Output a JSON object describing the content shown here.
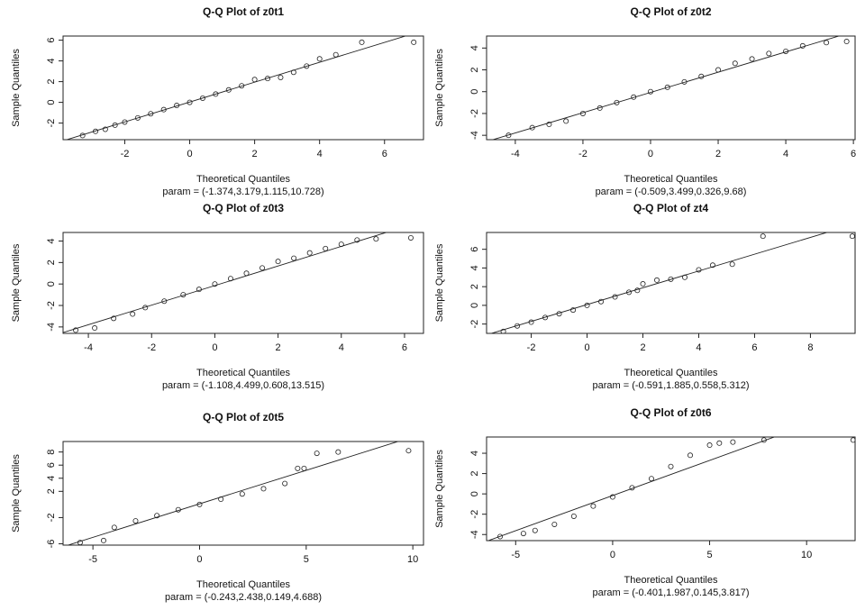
{
  "chart_data": [
    {
      "type": "scatter",
      "title": "Q-Q Plot of  z0t1",
      "xlabel": "Theoretical Quantiles",
      "ylabel": "Sample Quantiles",
      "subtitle": "param = (-1.374,3.179,1.115,10.728)",
      "x": [
        -3.3,
        -2.9,
        -2.6,
        -2.3,
        -2.0,
        -1.6,
        -1.2,
        -0.8,
        -0.4,
        0,
        0.4,
        0.8,
        1.2,
        1.6,
        2.0,
        2.4,
        2.8,
        3.2,
        3.6,
        4.0,
        4.5,
        5.3,
        6.9
      ],
      "values": [
        -3.2,
        -2.8,
        -2.6,
        -2.2,
        -1.9,
        -1.5,
        -1.1,
        -0.7,
        -0.3,
        0,
        0.4,
        0.8,
        1.2,
        1.6,
        2.2,
        2.3,
        2.4,
        2.9,
        3.5,
        4.2,
        4.6,
        5.8,
        5.8
      ],
      "xlim": [
        -3.9,
        7.2
      ],
      "xticks": [
        -2,
        0,
        2,
        4,
        6
      ],
      "ylim": [
        -3.6,
        6.4
      ],
      "yticks": [
        -2,
        0,
        2,
        4,
        6
      ]
    },
    {
      "type": "scatter",
      "title": "Q-Q Plot of  z0t2",
      "xlabel": "Theoretical Quantiles",
      "ylabel": "Sample Quantiles",
      "subtitle": "param = (-0.509,3.499,0.326,9.68)",
      "x": [
        -4.2,
        -3.5,
        -3,
        -2.5,
        -2,
        -1.5,
        -1,
        -0.5,
        0,
        0.5,
        1,
        1.5,
        2,
        2.5,
        3,
        3.5,
        4,
        4.5,
        5.2,
        5.8
      ],
      "values": [
        -4.0,
        -3.3,
        -3.0,
        -2.7,
        -2.0,
        -1.5,
        -1.0,
        -0.5,
        0,
        0.4,
        0.9,
        1.4,
        2.0,
        2.6,
        3.0,
        3.5,
        3.7,
        4.2,
        4.5,
        4.6
      ],
      "xlim": [
        -4.85,
        6.05
      ],
      "xticks": [
        -4,
        -2,
        0,
        2,
        4,
        6
      ],
      "ylim": [
        -4.4,
        5.1
      ],
      "yticks": [
        -4,
        -2,
        0,
        2,
        4
      ]
    },
    {
      "type": "scatter",
      "title": "Q-Q Plot of  z0t3",
      "xlabel": "Theoretical Quantiles",
      "ylabel": "Sample Quantiles",
      "subtitle": "param = (-1.108,4.499,0.608,13.515)",
      "x": [
        -4.4,
        -3.8,
        -3.2,
        -2.6,
        -2.2,
        -1.6,
        -1,
        -0.5,
        0,
        0.5,
        1,
        1.5,
        2,
        2.5,
        3,
        3.5,
        4,
        4.5,
        5.1,
        6.2
      ],
      "values": [
        -4.3,
        -4.1,
        -3.2,
        -2.8,
        -2.2,
        -1.6,
        -1.0,
        -0.5,
        0,
        0.5,
        1.0,
        1.5,
        2.1,
        2.4,
        2.9,
        3.3,
        3.7,
        4.1,
        4.2,
        4.3
      ],
      "xlim": [
        -4.8,
        6.6
      ],
      "xticks": [
        -4,
        -2,
        0,
        2,
        4,
        6
      ],
      "ylim": [
        -4.6,
        4.8
      ],
      "yticks": [
        -4,
        -2,
        0,
        2,
        4
      ]
    },
    {
      "type": "scatter",
      "title": "Q-Q Plot of  zt4",
      "xlabel": "Theoretical Quantiles",
      "ylabel": "Sample Quantiles",
      "subtitle": "param = (-0.591,1.885,0.558,5.312)",
      "x": [
        -3,
        -2.5,
        -2,
        -1.5,
        -1,
        -0.5,
        0,
        0.5,
        1,
        1.5,
        1.8,
        2,
        2.5,
        3,
        3.5,
        4,
        4.5,
        5.2,
        6.3,
        9.5
      ],
      "values": [
        -2.8,
        -2.2,
        -1.8,
        -1.3,
        -0.9,
        -0.5,
        0,
        0.4,
        0.9,
        1.4,
        1.6,
        2.3,
        2.7,
        2.8,
        3.0,
        3.8,
        4.3,
        4.4,
        7.4,
        7.4
      ],
      "xlim": [
        -3.6,
        9.6
      ],
      "xticks": [
        -2,
        0,
        2,
        4,
        6,
        8
      ],
      "ylim": [
        -3.0,
        7.8
      ],
      "yticks": [
        -2,
        0,
        2,
        4,
        6
      ]
    },
    {
      "type": "scatter",
      "title": "Q-Q Plot of  z0t5",
      "xlabel": "Theoretical Quantiles",
      "ylabel": "Sample Quantiles",
      "subtitle": "param = (-0.243,2.438,0.149,4.688)",
      "x": [
        -5.6,
        -4.5,
        -4,
        -3,
        -2,
        -1,
        0,
        1,
        2,
        3,
        4,
        4.6,
        4.9,
        5.5,
        6.5,
        9.8
      ],
      "values": [
        -5.8,
        -5.5,
        -3.5,
        -2.5,
        -1.7,
        -0.8,
        0,
        0.8,
        1.6,
        2.4,
        3.2,
        5.5,
        5.5,
        7.8,
        8.0,
        8.2
      ],
      "xlim": [
        -6.4,
        10.5
      ],
      "xticks": [
        -5,
        0,
        5,
        10
      ],
      "ylim": [
        -6.2,
        9.6
      ],
      "yticks": [
        -6,
        -2,
        2,
        4,
        6,
        8
      ]
    },
    {
      "type": "scatter",
      "title": "Q-Q Plot of  z0t6",
      "xlabel": "Theoretical Quantiles",
      "ylabel": "Sample Quantiles",
      "subtitle": "param = (-0.401,1.987,0.145,3.817)",
      "x": [
        -5.8,
        -4.6,
        -4,
        -3,
        -2,
        -1,
        0,
        1,
        2,
        3,
        4,
        5,
        5.5,
        6.2,
        7.8,
        12.4
      ],
      "values": [
        -4.2,
        -3.9,
        -3.6,
        -3.0,
        -2.2,
        -1.2,
        -0.3,
        0.6,
        1.5,
        2.7,
        3.8,
        4.8,
        5.0,
        5.1,
        5.3,
        5.3
      ],
      "xlim": [
        -6.5,
        12.5
      ],
      "xticks": [
        -5,
        0,
        5,
        10
      ],
      "ylim": [
        -4.6,
        5.6
      ],
      "yticks": [
        -4,
        -2,
        0,
        2,
        4
      ]
    }
  ]
}
